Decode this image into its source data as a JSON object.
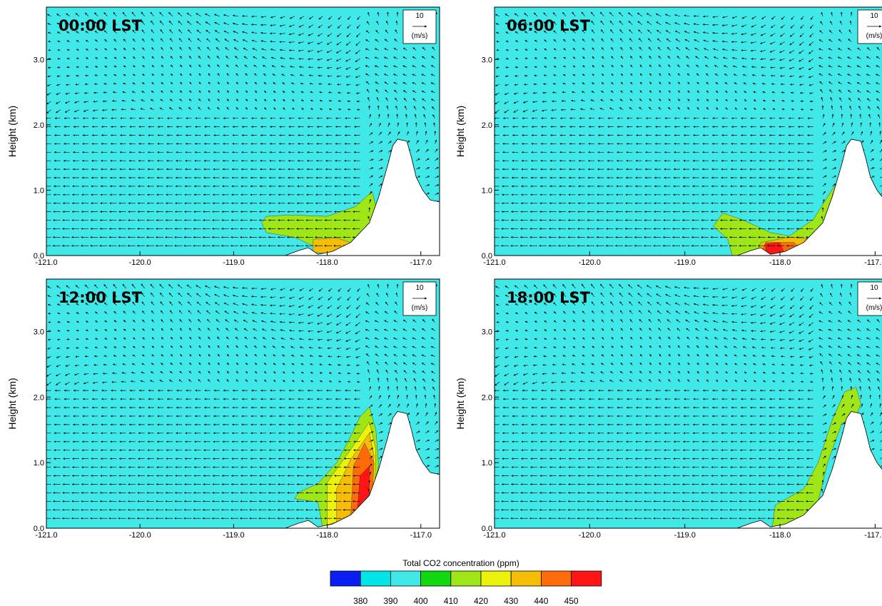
{
  "chart_data": {
    "type": "contour",
    "x_ticks": [
      "-121.0",
      "-120.0",
      "-119.0",
      "-118.0",
      "-117.0"
    ],
    "y_ticks": [
      "0.0",
      "1.0",
      "2.0",
      "3.0"
    ],
    "ylabel": "Height (km)",
    "xlim": [
      -121.0,
      -116.8
    ],
    "ylim": [
      0.0,
      3.8
    ],
    "reference_vector": {
      "value": "10",
      "unit": "(m/s)"
    },
    "colorbar": {
      "title": "Total CO2 concentration  (ppm)",
      "levels": [
        "380",
        "390",
        "400",
        "410",
        "420",
        "430",
        "440",
        "450"
      ],
      "colors": [
        "#0a1df2",
        "#00e5e6",
        "#41e8e8",
        "#12d80f",
        "#9ee616",
        "#ecf20a",
        "#f6bd07",
        "#ff6a0a",
        "#ff1515"
      ]
    },
    "background_color": "#41e8e8",
    "terrain": [
      [
        -121.0,
        0.0
      ],
      [
        -118.45,
        0.0
      ],
      [
        -118.3,
        0.08
      ],
      [
        -118.2,
        0.12
      ],
      [
        -118.1,
        0.02
      ],
      [
        -117.95,
        0.06
      ],
      [
        -117.75,
        0.2
      ],
      [
        -117.55,
        0.5
      ],
      [
        -117.45,
        0.9
      ],
      [
        -117.35,
        1.4
      ],
      [
        -117.3,
        1.68
      ],
      [
        -117.25,
        1.78
      ],
      [
        -117.15,
        1.75
      ],
      [
        -117.1,
        1.5
      ],
      [
        -117.05,
        1.2
      ],
      [
        -116.98,
        1.0
      ],
      [
        -116.9,
        0.85
      ],
      [
        -116.8,
        0.82
      ]
    ],
    "panels": [
      {
        "title": "00:00 LST",
        "plume": [
          {
            "level": "410",
            "points": [
              [
                -118.7,
                0.5
              ],
              [
                -118.65,
                0.6
              ],
              [
                -118.4,
                0.62
              ],
              [
                -118.0,
                0.6
              ],
              [
                -117.7,
                0.75
              ],
              [
                -117.52,
                0.98
              ],
              [
                -117.48,
                0.75
              ],
              [
                -117.52,
                0.35
              ],
              [
                -117.6,
                0.15
              ],
              [
                -117.95,
                0.05
              ],
              [
                -118.15,
                0.15
              ],
              [
                -118.35,
                0.28
              ],
              [
                -118.65,
                0.35
              ]
            ]
          },
          {
            "level": "430",
            "points": [
              [
                -118.15,
                0.05
              ],
              [
                -118.15,
                0.25
              ],
              [
                -117.9,
                0.27
              ],
              [
                -117.75,
                0.2
              ],
              [
                -117.7,
                0.05
              ],
              [
                -117.95,
                0.03
              ]
            ]
          },
          {
            "level": "440",
            "points": [
              [
                -117.82,
                0.06
              ],
              [
                -117.82,
                0.15
              ],
              [
                -117.72,
                0.14
              ],
              [
                -117.72,
                0.06
              ]
            ]
          }
        ]
      },
      {
        "title": "06:00 LST",
        "plume": [
          {
            "level": "410",
            "points": [
              [
                -118.5,
                0.0
              ],
              [
                -118.55,
                0.25
              ],
              [
                -118.7,
                0.45
              ],
              [
                -118.6,
                0.65
              ],
              [
                -118.4,
                0.55
              ],
              [
                -118.1,
                0.35
              ],
              [
                -117.9,
                0.3
              ],
              [
                -117.65,
                0.55
              ],
              [
                -117.5,
                0.9
              ],
              [
                -117.42,
                1.08
              ],
              [
                -117.38,
                0.95
              ],
              [
                -117.48,
                0.5
              ],
              [
                -117.58,
                0.12
              ],
              [
                -117.75,
                0.02
              ]
            ]
          },
          {
            "level": "430",
            "points": [
              [
                -118.25,
                0.03
              ],
              [
                -118.2,
                0.2
              ],
              [
                -117.9,
                0.28
              ],
              [
                -117.65,
                0.25
              ],
              [
                -117.6,
                0.03
              ]
            ]
          },
          {
            "level": "440",
            "points": [
              [
                -118.2,
                0.03
              ],
              [
                -118.15,
                0.2
              ],
              [
                -117.85,
                0.2
              ],
              [
                -117.75,
                0.03
              ]
            ]
          },
          {
            "level": "450",
            "points": [
              [
                -118.15,
                0.02
              ],
              [
                -118.15,
                0.18
              ],
              [
                -118.0,
                0.2
              ],
              [
                -117.95,
                0.02
              ]
            ]
          }
        ]
      },
      {
        "title": "12:00 LST",
        "plume": [
          {
            "level": "410",
            "points": [
              [
                -118.3,
                0.55
              ],
              [
                -118.35,
                0.45
              ],
              [
                -118.1,
                0.4
              ],
              [
                -118.05,
                0.02
              ],
              [
                -117.8,
                0.12
              ],
              [
                -117.55,
                0.4
              ],
              [
                -117.45,
                0.95
              ],
              [
                -117.48,
                1.5
              ],
              [
                -117.55,
                1.85
              ],
              [
                -117.65,
                1.7
              ],
              [
                -117.75,
                1.4
              ],
              [
                -117.9,
                1.0
              ],
              [
                -118.1,
                0.68
              ]
            ]
          },
          {
            "level": "420",
            "points": [
              [
                -118.0,
                0.05
              ],
              [
                -117.85,
                0.12
              ],
              [
                -117.5,
                0.4
              ],
              [
                -117.48,
                1.2
              ],
              [
                -117.55,
                1.62
              ],
              [
                -117.75,
                1.2
              ],
              [
                -118.0,
                0.7
              ]
            ]
          },
          {
            "level": "430",
            "points": [
              [
                -117.9,
                0.08
              ],
              [
                -117.55,
                0.4
              ],
              [
                -117.5,
                1.1
              ],
              [
                -117.55,
                1.45
              ],
              [
                -117.75,
                1.05
              ],
              [
                -117.9,
                0.6
              ]
            ]
          },
          {
            "level": "440",
            "points": [
              [
                -117.75,
                0.15
              ],
              [
                -117.52,
                0.4
              ],
              [
                -117.5,
                1.0
              ],
              [
                -117.6,
                1.3
              ],
              [
                -117.72,
                0.95
              ]
            ]
          },
          {
            "level": "450",
            "points": [
              [
                -117.68,
                0.25
              ],
              [
                -117.55,
                0.35
              ],
              [
                -117.55,
                0.95
              ],
              [
                -117.65,
                0.8
              ]
            ]
          }
        ]
      },
      {
        "title": "18:00 LST",
        "plume": [
          {
            "level": "410",
            "points": [
              [
                -118.08,
                0.02
              ],
              [
                -118.05,
                0.35
              ],
              [
                -117.75,
                0.6
              ],
              [
                -117.6,
                1.0
              ],
              [
                -117.45,
                1.65
              ],
              [
                -117.32,
                2.08
              ],
              [
                -117.2,
                2.15
              ],
              [
                -117.15,
                1.9
              ],
              [
                -117.2,
                1.7
              ],
              [
                -117.35,
                1.6
              ],
              [
                -117.5,
                1.0
              ],
              [
                -117.6,
                0.4
              ],
              [
                -117.75,
                0.1
              ],
              [
                -117.95,
                0.03
              ]
            ]
          }
        ]
      }
    ]
  }
}
